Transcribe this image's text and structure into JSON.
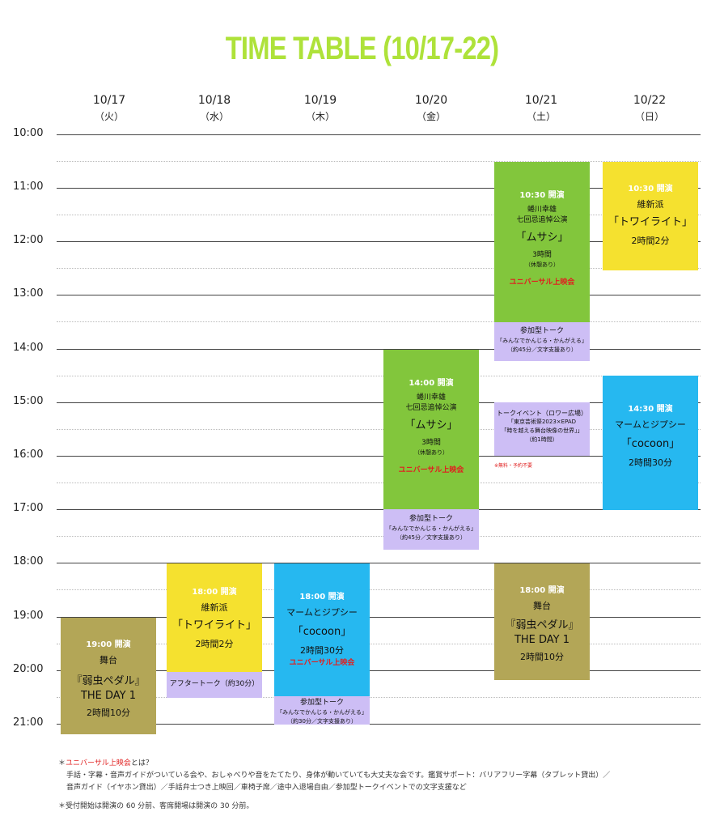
{
  "title": "TIME TABLE (10/17-22)",
  "days": [
    {
      "date": "10/17",
      "weekday": "（火）"
    },
    {
      "date": "10/18",
      "weekday": "（水）"
    },
    {
      "date": "10/19",
      "weekday": "（木）"
    },
    {
      "date": "10/20",
      "weekday": "（金）"
    },
    {
      "date": "10/21",
      "weekday": "（土）"
    },
    {
      "date": "10/22",
      "weekday": "（日）"
    }
  ],
  "times": [
    "10:00",
    "11:00",
    "12:00",
    "13:00",
    "14:00",
    "15:00",
    "16:00",
    "17:00",
    "18:00",
    "19:00",
    "20:00",
    "21:00"
  ],
  "colors": {
    "green": "#82c63c",
    "yellow": "#f5e12f",
    "blue": "#26b8f0",
    "gold": "#b3a657",
    "purple": "#cdbef5",
    "title": "#aee23a",
    "red": "#e02020"
  },
  "events": {
    "e1017": {
      "start": "19:00 開演",
      "line1": "舞台",
      "name": "『弱虫ペダル』",
      "name2": "THE DAY 1",
      "duration": "2時間10分"
    },
    "e1018": {
      "start": "18:00 開演",
      "line1": "維新派",
      "name": "「トワイライト」",
      "duration": "2時間2分"
    },
    "t1018": {
      "label": "アフタートーク（約30分）"
    },
    "e1019": {
      "start": "18:00 開演",
      "line1": "マームとジプシー",
      "name": "「cocoon」",
      "duration": "2時間30分",
      "universal": "ユニバーサル上映会"
    },
    "t1019": {
      "line1": "参加型トーク",
      "line2": "「みんなでかんじる・かんがえる」",
      "line3": "（約30分／文字支援あり）"
    },
    "e1020": {
      "start": "14:00 開演",
      "line1": "蜷川幸雄",
      "line2": "七回忌追悼公演",
      "name": "「ムサシ」",
      "duration": "3時間",
      "note": "（休憩あり）",
      "universal": "ユニバーサル上映会"
    },
    "t1020": {
      "line1": "参加型トーク",
      "line2": "「みんなでかんじる・かんがえる」",
      "line3": "（約45分／文字支援あり）"
    },
    "e1021a": {
      "start": "10:30 開演",
      "line1": "蜷川幸雄",
      "line2": "七回忌追悼公演",
      "name": "「ムサシ」",
      "duration": "3時間",
      "note": "（休憩あり）",
      "universal": "ユニバーサル上映会"
    },
    "t1021a": {
      "line1": "参加型トーク",
      "line2": "「みんなでかんじる・かんがえる」",
      "line3": "（約45分／文字支援あり）"
    },
    "t1021b": {
      "line1": "トークイベント（ロワー広場）",
      "line2": "「東京芸術祭2023×EPAD",
      "line3": "「時を越える舞台映像の世界」」",
      "line4": "（約1時間）",
      "free": "※無料・予約不要"
    },
    "e1021c": {
      "start": "18:00 開演",
      "line1": "舞台",
      "name": "『弱虫ペダル』",
      "name2": "THE DAY 1",
      "duration": "2時間10分"
    },
    "e1022a": {
      "start": "10:30 開演",
      "line1": "維新派",
      "name": "「トワイライト」",
      "duration": "2時間2分"
    },
    "e1022b": {
      "start": "14:30 開演",
      "line1": "マームとジプシー",
      "name": "「cocoon」",
      "duration": "2時間30分"
    }
  },
  "notes": {
    "n1_mark": "＊",
    "n1_red": "ユニバーサル上映会",
    "n1_rest": "とは？",
    "n1_line2": "手話・字幕・音声ガイドがついている会や、おしゃべりや音をたてたり、身体が動いていても大丈夫な会です。鑑賞サポート：バリアフリー字幕（タブレット貸出）／",
    "n1_line3": "音声ガイド（イヤホン貸出）／手話弁士つき上映回／車椅子席／途中入退場自由／参加型トークイベントでの文字支援など",
    "n2": "＊受付開始は開演の 60 分前、客席開場は開演の 30 分前。"
  }
}
